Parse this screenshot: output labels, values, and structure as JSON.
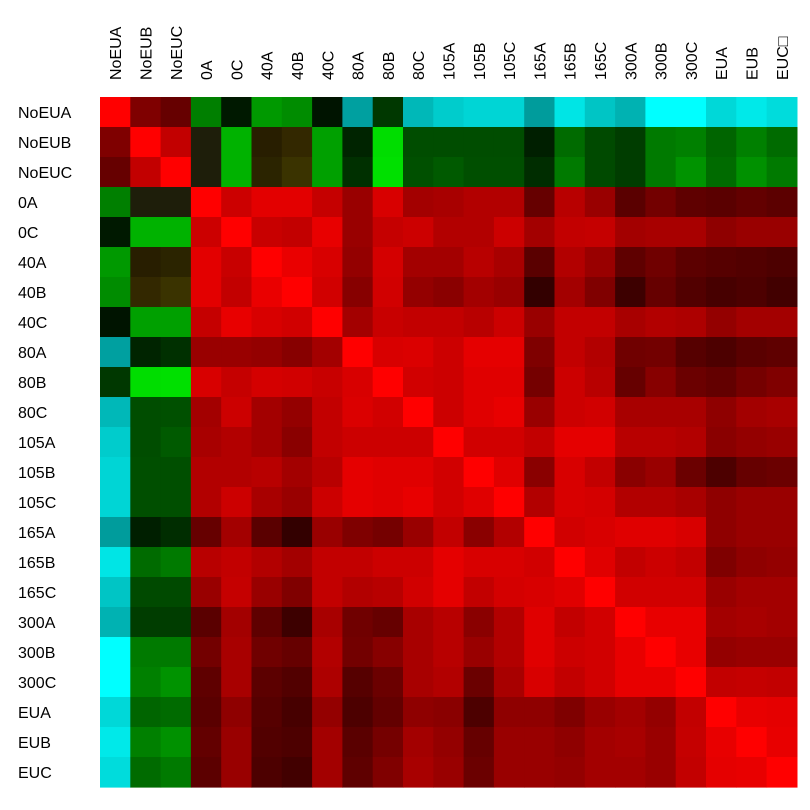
{
  "chart_data": {
    "type": "heatmap",
    "title": "",
    "xlabel": "",
    "ylabel": "",
    "x_labels": [
      "NoEUA",
      "NoEUB",
      "NoEUC",
      "0A",
      "0C",
      "40A",
      "40B",
      "40C",
      "80A",
      "80B",
      "80C",
      "105A",
      "105B",
      "105C",
      "165A",
      "165B",
      "165C",
      "300A",
      "300B",
      "300C",
      "EUA",
      "EUB",
      "EUC□"
    ],
    "y_labels": [
      "NoEUA",
      "NoEUB",
      "NoEUC",
      "0A",
      "0C",
      "40A",
      "40B",
      "40C",
      "80A",
      "80B",
      "80C",
      "105A",
      "105B",
      "105C",
      "165A",
      "165B",
      "165C",
      "300A",
      "300B",
      "300C",
      "EUA",
      "EUB",
      "EUC"
    ],
    "colors": {
      "0A": [
        "#ff0000",
        "#7f0000",
        "#660000",
        "#007f00",
        "#001900",
        "#009900",
        "#008c00",
        "#001400",
        "#00a0a0",
        "#003800",
        "#00b8b8",
        "#00cccc",
        "#00d5d5",
        "#00d5d5",
        "#009c9c",
        "#00e5e5",
        "#00c5c5",
        "#00b2b2",
        "#00ffff",
        "#00ffff",
        "#00d8d8",
        "#00e9e9",
        "#00dcdc"
      ],
      "1A": [
        "#7f0000",
        "#ff0000",
        "#c20000",
        "#1e1e0a",
        "#00b200",
        "#281e00",
        "#332800",
        "#00a000",
        "#002400",
        "#00dd00",
        "#004d00",
        "#004d00",
        "#004d00",
        "#004d00",
        "#001f00",
        "#006b00",
        "#004a00",
        "#003d00",
        "#007a00",
        "#008000",
        "#006500",
        "#008000",
        "#006b00"
      ],
      "2A": [
        "#660000",
        "#c20000",
        "#ff0000",
        "#1e1e0a",
        "#00b200",
        "#2b2400",
        "#3a3300",
        "#00a000",
        "#003000",
        "#00e000",
        "#005000",
        "#005a00",
        "#004f00",
        "#004f00",
        "#002d00",
        "#007a00",
        "#004a00",
        "#003d00",
        "#007a00",
        "#009300",
        "#006b00",
        "#009100",
        "#007a00"
      ],
      "3A": [
        "#007f00",
        "#1e1e0a",
        "#1e1e0a",
        "#ff0000",
        "#cc0000",
        "#e30000",
        "#e30000",
        "#c50000",
        "#990000",
        "#d80000",
        "#a30000",
        "#a80000",
        "#b20000",
        "#b20000",
        "#660000",
        "#b80000",
        "#990000",
        "#5a0000",
        "#730000",
        "#5f0000",
        "#5a0000",
        "#630000",
        "#5c0000"
      ],
      "4A": [
        "#001900",
        "#00b200",
        "#00b200",
        "#cc0000",
        "#ff0000",
        "#c80000",
        "#c20000",
        "#e80000",
        "#990000",
        "#c50000",
        "#cc0000",
        "#b20000",
        "#b20000",
        "#cc0000",
        "#a30000",
        "#c20000",
        "#c50000",
        "#a30000",
        "#a80000",
        "#a80000",
        "#8f0000",
        "#990000",
        "#990000"
      ],
      "5A": [
        "#009900",
        "#281e00",
        "#2b2400",
        "#e30000",
        "#c80000",
        "#ff0000",
        "#ea0000",
        "#d80000",
        "#940000",
        "#d40000",
        "#a30000",
        "#a30000",
        "#b80000",
        "#a80000",
        "#5a0000",
        "#b20000",
        "#990000",
        "#5f0000",
        "#700000",
        "#5c0000",
        "#560000",
        "#520000",
        "#4d0000"
      ],
      "6A": [
        "#008c00",
        "#332800",
        "#3a3300",
        "#e30000",
        "#c20000",
        "#ea0000",
        "#ff0000",
        "#d10000",
        "#870000",
        "#d10000",
        "#940000",
        "#8a0000",
        "#a30000",
        "#990000",
        "#330000",
        "#a30000",
        "#800000",
        "#3d0000",
        "#660000",
        "#520000",
        "#470000",
        "#4d0000",
        "#420000"
      ],
      "7A": [
        "#001400",
        "#00a000",
        "#00a000",
        "#c50000",
        "#e80000",
        "#d80000",
        "#d10000",
        "#ff0000",
        "#a30000",
        "#c80000",
        "#c20000",
        "#c20000",
        "#b80000",
        "#cc0000",
        "#990000",
        "#c20000",
        "#c20000",
        "#a80000",
        "#b20000",
        "#ad0000",
        "#940000",
        "#a30000",
        "#a30000"
      ],
      "8A": [
        "#00a0a0",
        "#002400",
        "#003000",
        "#990000",
        "#990000",
        "#940000",
        "#870000",
        "#a30000",
        "#ff0000",
        "#d80000",
        "#db0000",
        "#cc0000",
        "#e50000",
        "#e50000",
        "#7f0000",
        "#c20000",
        "#b20000",
        "#700000",
        "#730000",
        "#560000",
        "#4d0000",
        "#5a0000",
        "#5f0000"
      ],
      "9A": [
        "#003800",
        "#00dd00",
        "#00e000",
        "#d80000",
        "#c50000",
        "#d40000",
        "#d10000",
        "#c80000",
        "#d80000",
        "#ff0000",
        "#d10000",
        "#cc0000",
        "#e00000",
        "#e00000",
        "#750000",
        "#cc0000",
        "#b80000",
        "#660000",
        "#870000",
        "#6b0000",
        "#630000",
        "#750000",
        "#800000"
      ],
      "10A": [
        "#00b8b8",
        "#004d00",
        "#005000",
        "#a30000",
        "#cc0000",
        "#a30000",
        "#940000",
        "#c20000",
        "#db0000",
        "#d10000",
        "#ff0000",
        "#cc0000",
        "#e00000",
        "#e80000",
        "#990000",
        "#cc0000",
        "#d10000",
        "#a80000",
        "#a80000",
        "#a80000",
        "#8f0000",
        "#a30000",
        "#a80000"
      ],
      "11A": [
        "#00cccc",
        "#004d00",
        "#005a00",
        "#a80000",
        "#b20000",
        "#a30000",
        "#8a0000",
        "#c20000",
        "#cc0000",
        "#cc0000",
        "#cc0000",
        "#ff0000",
        "#d10000",
        "#d10000",
        "#c20000",
        "#e50000",
        "#e50000",
        "#b80000",
        "#b80000",
        "#b20000",
        "#8a0000",
        "#940000",
        "#990000"
      ],
      "12A": [
        "#00d5d5",
        "#004f00",
        "#004f00",
        "#b20000",
        "#b20000",
        "#b80000",
        "#a30000",
        "#b80000",
        "#e50000",
        "#e00000",
        "#e00000",
        "#d10000",
        "#ff0000",
        "#e00000",
        "#8a0000",
        "#d80000",
        "#c20000",
        "#8a0000",
        "#990000",
        "#6b0000",
        "#4d0000",
        "#660000",
        "#6b0000"
      ],
      "13A": [
        "#00d5d5",
        "#004f00",
        "#004f00",
        "#b20000",
        "#cc0000",
        "#a80000",
        "#990000",
        "#cc0000",
        "#e50000",
        "#e00000",
        "#e80000",
        "#d10000",
        "#e00000",
        "#ff0000",
        "#b20000",
        "#d80000",
        "#d40000",
        "#b20000",
        "#b20000",
        "#a80000",
        "#8f0000",
        "#990000",
        "#990000"
      ],
      "14A": [
        "#009c9c",
        "#001f00",
        "#002d00",
        "#660000",
        "#a30000",
        "#5a0000",
        "#330000",
        "#990000",
        "#7f0000",
        "#750000",
        "#990000",
        "#c20000",
        "#8a0000",
        "#b20000",
        "#ff0000",
        "#d10000",
        "#d80000",
        "#e00000",
        "#e00000",
        "#d80000",
        "#8f0000",
        "#990000",
        "#990000"
      ],
      "15A": [
        "#00e5e5",
        "#006b00",
        "#007a00",
        "#b80000",
        "#c20000",
        "#b20000",
        "#a30000",
        "#c20000",
        "#c20000",
        "#cc0000",
        "#cc0000",
        "#e50000",
        "#d80000",
        "#d80000",
        "#d10000",
        "#ff0000",
        "#e00000",
        "#c20000",
        "#cc0000",
        "#c20000",
        "#7f0000",
        "#8f0000",
        "#940000"
      ],
      "16A": [
        "#00c5c5",
        "#004a00",
        "#004a00",
        "#990000",
        "#c50000",
        "#990000",
        "#800000",
        "#c20000",
        "#b20000",
        "#b80000",
        "#d10000",
        "#e50000",
        "#c20000",
        "#d40000",
        "#d80000",
        "#e00000",
        "#ff0000",
        "#d10000",
        "#d10000",
        "#d10000",
        "#990000",
        "#a30000",
        "#a30000"
      ],
      "17A": [
        "#00b2b2",
        "#003d00",
        "#003d00",
        "#5a0000",
        "#a30000",
        "#5f0000",
        "#3d0000",
        "#a80000",
        "#700000",
        "#660000",
        "#a80000",
        "#b80000",
        "#8a0000",
        "#b20000",
        "#e00000",
        "#c20000",
        "#d10000",
        "#ff0000",
        "#e80000",
        "#e80000",
        "#a30000",
        "#a80000",
        "#a30000"
      ],
      "18A": [
        "#00ffff",
        "#007a00",
        "#007a00",
        "#730000",
        "#a80000",
        "#700000",
        "#660000",
        "#b20000",
        "#730000",
        "#870000",
        "#a80000",
        "#b80000",
        "#990000",
        "#b20000",
        "#e00000",
        "#cc0000",
        "#d10000",
        "#e80000",
        "#ff0000",
        "#e80000",
        "#940000",
        "#990000",
        "#990000"
      ],
      "19A": [
        "#00ffff",
        "#008000",
        "#009300",
        "#5f0000",
        "#a80000",
        "#5c0000",
        "#520000",
        "#ad0000",
        "#560000",
        "#6b0000",
        "#a80000",
        "#b20000",
        "#6b0000",
        "#a80000",
        "#d80000",
        "#c20000",
        "#d10000",
        "#e80000",
        "#e80000",
        "#ff0000",
        "#c20000",
        "#c50000",
        "#c20000"
      ],
      "20A": [
        "#00d8d8",
        "#006500",
        "#006b00",
        "#5a0000",
        "#8f0000",
        "#560000",
        "#470000",
        "#940000",
        "#4d0000",
        "#630000",
        "#8f0000",
        "#8a0000",
        "#4d0000",
        "#8f0000",
        "#8f0000",
        "#7f0000",
        "#990000",
        "#a30000",
        "#940000",
        "#c20000",
        "#ff0000",
        "#e80000",
        "#e50000"
      ],
      "21A": [
        "#00e9e9",
        "#008000",
        "#009100",
        "#630000",
        "#990000",
        "#520000",
        "#4d0000",
        "#a30000",
        "#5a0000",
        "#750000",
        "#a30000",
        "#940000",
        "#660000",
        "#990000",
        "#990000",
        "#8f0000",
        "#a30000",
        "#a80000",
        "#990000",
        "#c50000",
        "#e80000",
        "#ff0000",
        "#e80000"
      ],
      "22A": [
        "#00dcdc",
        "#006b00",
        "#007a00",
        "#5c0000",
        "#990000",
        "#4d0000",
        "#420000",
        "#a30000",
        "#5f0000",
        "#800000",
        "#a80000",
        "#990000",
        "#6b0000",
        "#990000",
        "#990000",
        "#940000",
        "#a30000",
        "#a30000",
        "#990000",
        "#c20000",
        "#e50000",
        "#e80000",
        "#ff0000"
      ]
    }
  }
}
